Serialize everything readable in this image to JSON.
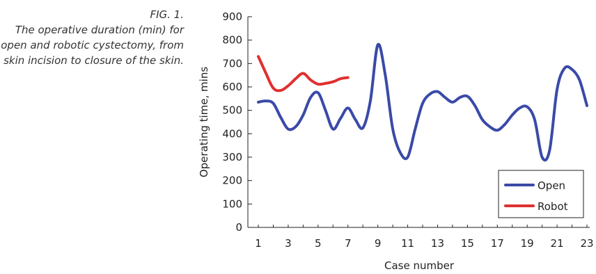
{
  "caption": {
    "fig_label": "FIG. 1.",
    "text": "The operative duration (min) for open and robotic cystectomy, from skin incision to closure of the skin."
  },
  "chart_data": {
    "type": "line",
    "xlabel": "Case number",
    "ylabel": "Operating time, mins",
    "xlim": [
      1,
      23
    ],
    "ylim": [
      0,
      900
    ],
    "x_ticks": [
      1,
      3,
      5,
      7,
      9,
      11,
      13,
      15,
      17,
      19,
      21,
      23
    ],
    "y_ticks": [
      0,
      100,
      200,
      300,
      400,
      500,
      600,
      700,
      800,
      900
    ],
    "grid": false,
    "legend_position": "bottom-right",
    "series": [
      {
        "name": "Open",
        "color": "#3a4aa8",
        "points": [
          [
            1,
            535
          ],
          [
            1.5,
            540
          ],
          [
            2,
            530
          ],
          [
            2.5,
            470
          ],
          [
            3,
            420
          ],
          [
            3.5,
            430
          ],
          [
            4,
            480
          ],
          [
            4.5,
            555
          ],
          [
            5,
            575
          ],
          [
            5.5,
            500
          ],
          [
            6,
            420
          ],
          [
            6.5,
            465
          ],
          [
            7,
            510
          ],
          [
            7.5,
            460
          ],
          [
            8,
            425
          ],
          [
            8.5,
            540
          ],
          [
            9,
            780
          ],
          [
            9.5,
            650
          ],
          [
            10,
            420
          ],
          [
            10.5,
            320
          ],
          [
            11,
            300
          ],
          [
            11.5,
            420
          ],
          [
            12,
            530
          ],
          [
            12.5,
            570
          ],
          [
            13,
            580
          ],
          [
            13.5,
            555
          ],
          [
            14,
            535
          ],
          [
            14.5,
            555
          ],
          [
            15,
            560
          ],
          [
            15.5,
            520
          ],
          [
            16,
            460
          ],
          [
            16.5,
            430
          ],
          [
            17,
            415
          ],
          [
            17.5,
            440
          ],
          [
            18,
            480
          ],
          [
            18.5,
            510
          ],
          [
            19,
            515
          ],
          [
            19.5,
            460
          ],
          [
            20,
            300
          ],
          [
            20.5,
            330
          ],
          [
            21,
            590
          ],
          [
            21.5,
            680
          ],
          [
            22,
            675
          ],
          [
            22.5,
            630
          ],
          [
            23,
            520
          ]
        ]
      },
      {
        "name": "Robot",
        "color": "#e03030",
        "points": [
          [
            1,
            730
          ],
          [
            1.5,
            660
          ],
          [
            2,
            595
          ],
          [
            2.5,
            585
          ],
          [
            3,
            605
          ],
          [
            3.5,
            635
          ],
          [
            4,
            658
          ],
          [
            4.5,
            630
          ],
          [
            5,
            612
          ],
          [
            5.5,
            615
          ],
          [
            6,
            622
          ],
          [
            6.5,
            635
          ],
          [
            7,
            640
          ]
        ]
      }
    ]
  }
}
